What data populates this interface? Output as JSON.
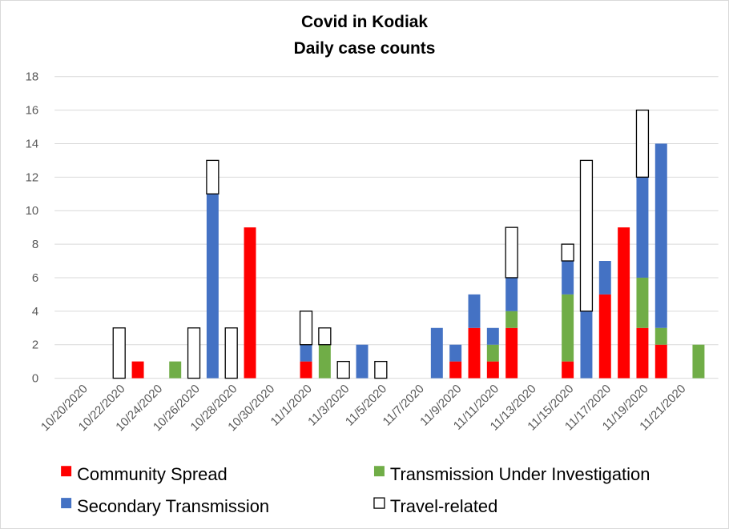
{
  "chart_data": {
    "type": "bar",
    "stacked": true,
    "title": "Covid in Kodiak",
    "subtitle": "Daily case counts",
    "xlabel": "",
    "ylabel": "",
    "ylim": [
      0,
      18
    ],
    "yticks": [
      0,
      2,
      4,
      6,
      8,
      10,
      12,
      14,
      16,
      18
    ],
    "grid": true,
    "legend_position": "bottom",
    "categories": [
      "10/20/2020",
      "10/21/2020",
      "10/22/2020",
      "10/23/2020",
      "10/24/2020",
      "10/25/2020",
      "10/26/2020",
      "10/27/2020",
      "10/28/2020",
      "10/29/2020",
      "10/30/2020",
      "10/31/2020",
      "11/1/2020",
      "11/2/2020",
      "11/3/2020",
      "11/4/2020",
      "11/5/2020",
      "11/6/2020",
      "11/7/2020",
      "11/8/2020",
      "11/9/2020",
      "11/10/2020",
      "11/11/2020",
      "11/12/2020",
      "11/13/2020",
      "11/14/2020",
      "11/15/2020",
      "11/16/2020",
      "11/17/2020",
      "11/18/2020",
      "11/19/2020",
      "11/20/2020",
      "11/21/2020",
      "11/22/2020"
    ],
    "xtick_labels": [
      "10/20/2020",
      "10/22/2020",
      "10/24/2020",
      "10/26/2020",
      "10/28/2020",
      "10/30/2020",
      "11/1/2020",
      "11/3/2020",
      "11/5/2020",
      "11/7/2020",
      "11/9/2020",
      "11/11/2020",
      "11/13/2020",
      "11/15/2020",
      "11/17/2020",
      "11/19/2020",
      "11/21/2020"
    ],
    "series": [
      {
        "name": "Community Spread",
        "color": "#ff0000",
        "stroke": "#ff0000",
        "values": [
          0,
          0,
          0,
          1,
          0,
          0,
          0,
          0,
          0,
          9,
          0,
          0,
          1,
          0,
          0,
          0,
          0,
          0,
          0,
          0,
          1,
          3,
          1,
          3,
          0,
          0,
          1,
          0,
          5,
          9,
          3,
          2,
          0,
          0
        ]
      },
      {
        "name": "Transmission Under Investigation",
        "color": "#70ad47",
        "stroke": "#70ad47",
        "values": [
          0,
          0,
          0,
          0,
          0,
          1,
          0,
          0,
          0,
          0,
          0,
          0,
          0,
          2,
          0,
          0,
          0,
          0,
          0,
          0,
          0,
          0,
          1,
          1,
          0,
          0,
          4,
          0,
          0,
          0,
          3,
          1,
          0,
          2
        ]
      },
      {
        "name": "Secondary Transmission",
        "color": "#4472c4",
        "stroke": "#4472c4",
        "values": [
          0,
          0,
          0,
          0,
          0,
          0,
          0,
          11,
          0,
          0,
          0,
          0,
          1,
          0,
          0,
          2,
          0,
          0,
          0,
          3,
          1,
          2,
          1,
          2,
          0,
          0,
          2,
          4,
          2,
          0,
          6,
          11,
          0,
          0
        ]
      },
      {
        "name": "Travel-related",
        "color": "#ffffff",
        "stroke": "#000000",
        "values": [
          0,
          0,
          3,
          0,
          0,
          0,
          3,
          2,
          3,
          0,
          0,
          0,
          2,
          1,
          1,
          0,
          1,
          0,
          0,
          0,
          0,
          0,
          0,
          3,
          0,
          0,
          1,
          9,
          0,
          0,
          4,
          0,
          0,
          0
        ]
      }
    ]
  }
}
